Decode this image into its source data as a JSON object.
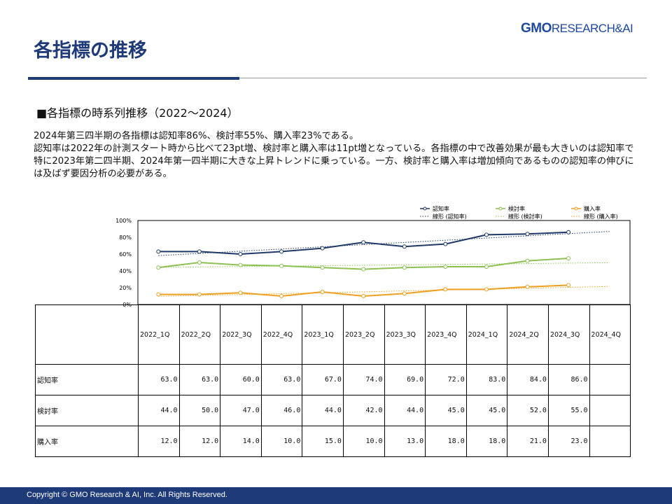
{
  "header": {
    "title": "各指標の推移",
    "logo": "GMO RESEARCH & AI"
  },
  "subtitle": "■各指標の時系列推移（2022～2024）",
  "body": [
    "2024年第三四半期の各指標は認知率86%、検討率55%、購入率23%である。",
    "認知率は2022年の計測スタート時から比べて23pt増、検討率と購入率は11pt増となっている。各指標の中で改善効果が最も大きいのは認知率で特に2023年第二四半期、2024年第一四半期に大きな上昇トレンドに乗っている。一方、検討率と購入率は増加傾向であるものの認知率の伸びには及ばず要因分析の必要がある。"
  ],
  "chart_data": {
    "type": "line",
    "categories": [
      "2022_1Q",
      "2022_2Q",
      "2022_3Q",
      "2022_4Q",
      "2023_1Q",
      "2023_2Q",
      "2023_3Q",
      "2023_4Q",
      "2024_1Q",
      "2024_2Q",
      "2024_3Q",
      "2024_4Q"
    ],
    "yticks": [
      "0%",
      "20%",
      "40%",
      "60%",
      "80%",
      "100%"
    ],
    "ylim": [
      0,
      100
    ],
    "series": [
      {
        "name": "認知率",
        "trend_name": "線形 (認知率)",
        "color": "#1f3a68",
        "values": [
          63.0,
          63.0,
          60.0,
          63.0,
          67.0,
          74.0,
          69.0,
          72.0,
          83.0,
          84.0,
          86.0,
          null
        ]
      },
      {
        "name": "検討率",
        "trend_name": "線形 (検討率)",
        "color": "#8cc152",
        "values": [
          44.0,
          50.0,
          47.0,
          46.0,
          44.0,
          42.0,
          44.0,
          45.0,
          45.0,
          52.0,
          55.0,
          null
        ]
      },
      {
        "name": "購入率",
        "trend_name": "線形 (購入率)",
        "color": "#f0a020",
        "values": [
          12.0,
          12.0,
          14.0,
          10.0,
          15.0,
          10.0,
          13.0,
          18.0,
          18.0,
          21.0,
          23.0,
          null
        ]
      }
    ]
  },
  "footer": "Copyright © GMO Research & AI, Inc. All Rights Reserved."
}
